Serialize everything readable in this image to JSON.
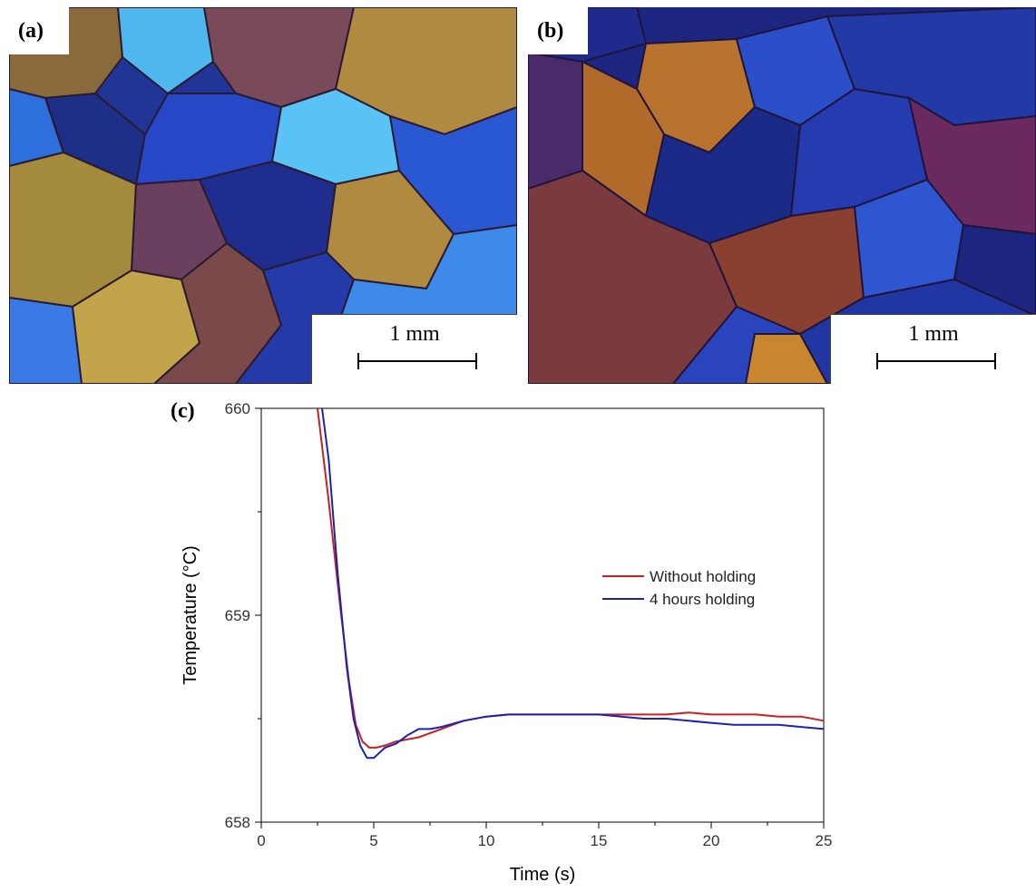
{
  "panels": {
    "a": {
      "label": "(a)",
      "scale_text": "1 mm"
    },
    "b": {
      "label": "(b)",
      "scale_text": "1 mm"
    },
    "c": {
      "label": "(c)"
    }
  },
  "chart_data": {
    "type": "line",
    "xlabel": "Time (s)",
    "ylabel": "Temperature (°C)",
    "xlim": [
      0,
      25
    ],
    "ylim": [
      658,
      660
    ],
    "xticks": [
      0,
      5,
      10,
      15,
      20,
      25
    ],
    "yticks": [
      658,
      659,
      660
    ],
    "grid": false,
    "legend_position": "right",
    "series": [
      {
        "name": "Without holding",
        "color": "#cc1f1f",
        "x": [
          2.5,
          3.0,
          3.5,
          3.9,
          4.2,
          4.5,
          4.8,
          5.1,
          5.5,
          6.0,
          7.0,
          8.0,
          9.0,
          10.0,
          11.0,
          12.0,
          13.0,
          14.0,
          15.0,
          16.0,
          17.0,
          18.0,
          19.0,
          20.0,
          21.0,
          22.0,
          23.0,
          24.0,
          25.0
        ],
        "values": [
          660.0,
          659.55,
          659.05,
          658.68,
          658.47,
          658.39,
          658.36,
          658.36,
          658.37,
          658.39,
          658.41,
          658.45,
          658.49,
          658.51,
          658.52,
          658.52,
          658.52,
          658.52,
          658.52,
          658.52,
          658.52,
          658.52,
          658.53,
          658.52,
          658.52,
          658.52,
          658.51,
          658.51,
          658.49
        ]
      },
      {
        "name": "4 hours holding",
        "color": "#1a22b4",
        "x": [
          2.7,
          3.0,
          3.4,
          3.8,
          4.1,
          4.4,
          4.7,
          5.0,
          5.5,
          6.0,
          6.5,
          7.0,
          7.5,
          8.0,
          9.0,
          10.0,
          11.0,
          12.0,
          13.0,
          14.0,
          15.0,
          16.0,
          17.0,
          18.0,
          19.0,
          20.0,
          21.0,
          22.0,
          23.0,
          24.0,
          25.0
        ],
        "values": [
          660.0,
          659.75,
          659.2,
          658.75,
          658.5,
          658.37,
          658.31,
          658.31,
          658.36,
          658.38,
          658.42,
          658.45,
          658.45,
          658.46,
          658.49,
          658.51,
          658.52,
          658.52,
          658.52,
          658.52,
          658.52,
          658.51,
          658.5,
          658.5,
          658.49,
          658.48,
          658.47,
          658.47,
          658.47,
          658.46,
          658.45
        ]
      }
    ]
  }
}
